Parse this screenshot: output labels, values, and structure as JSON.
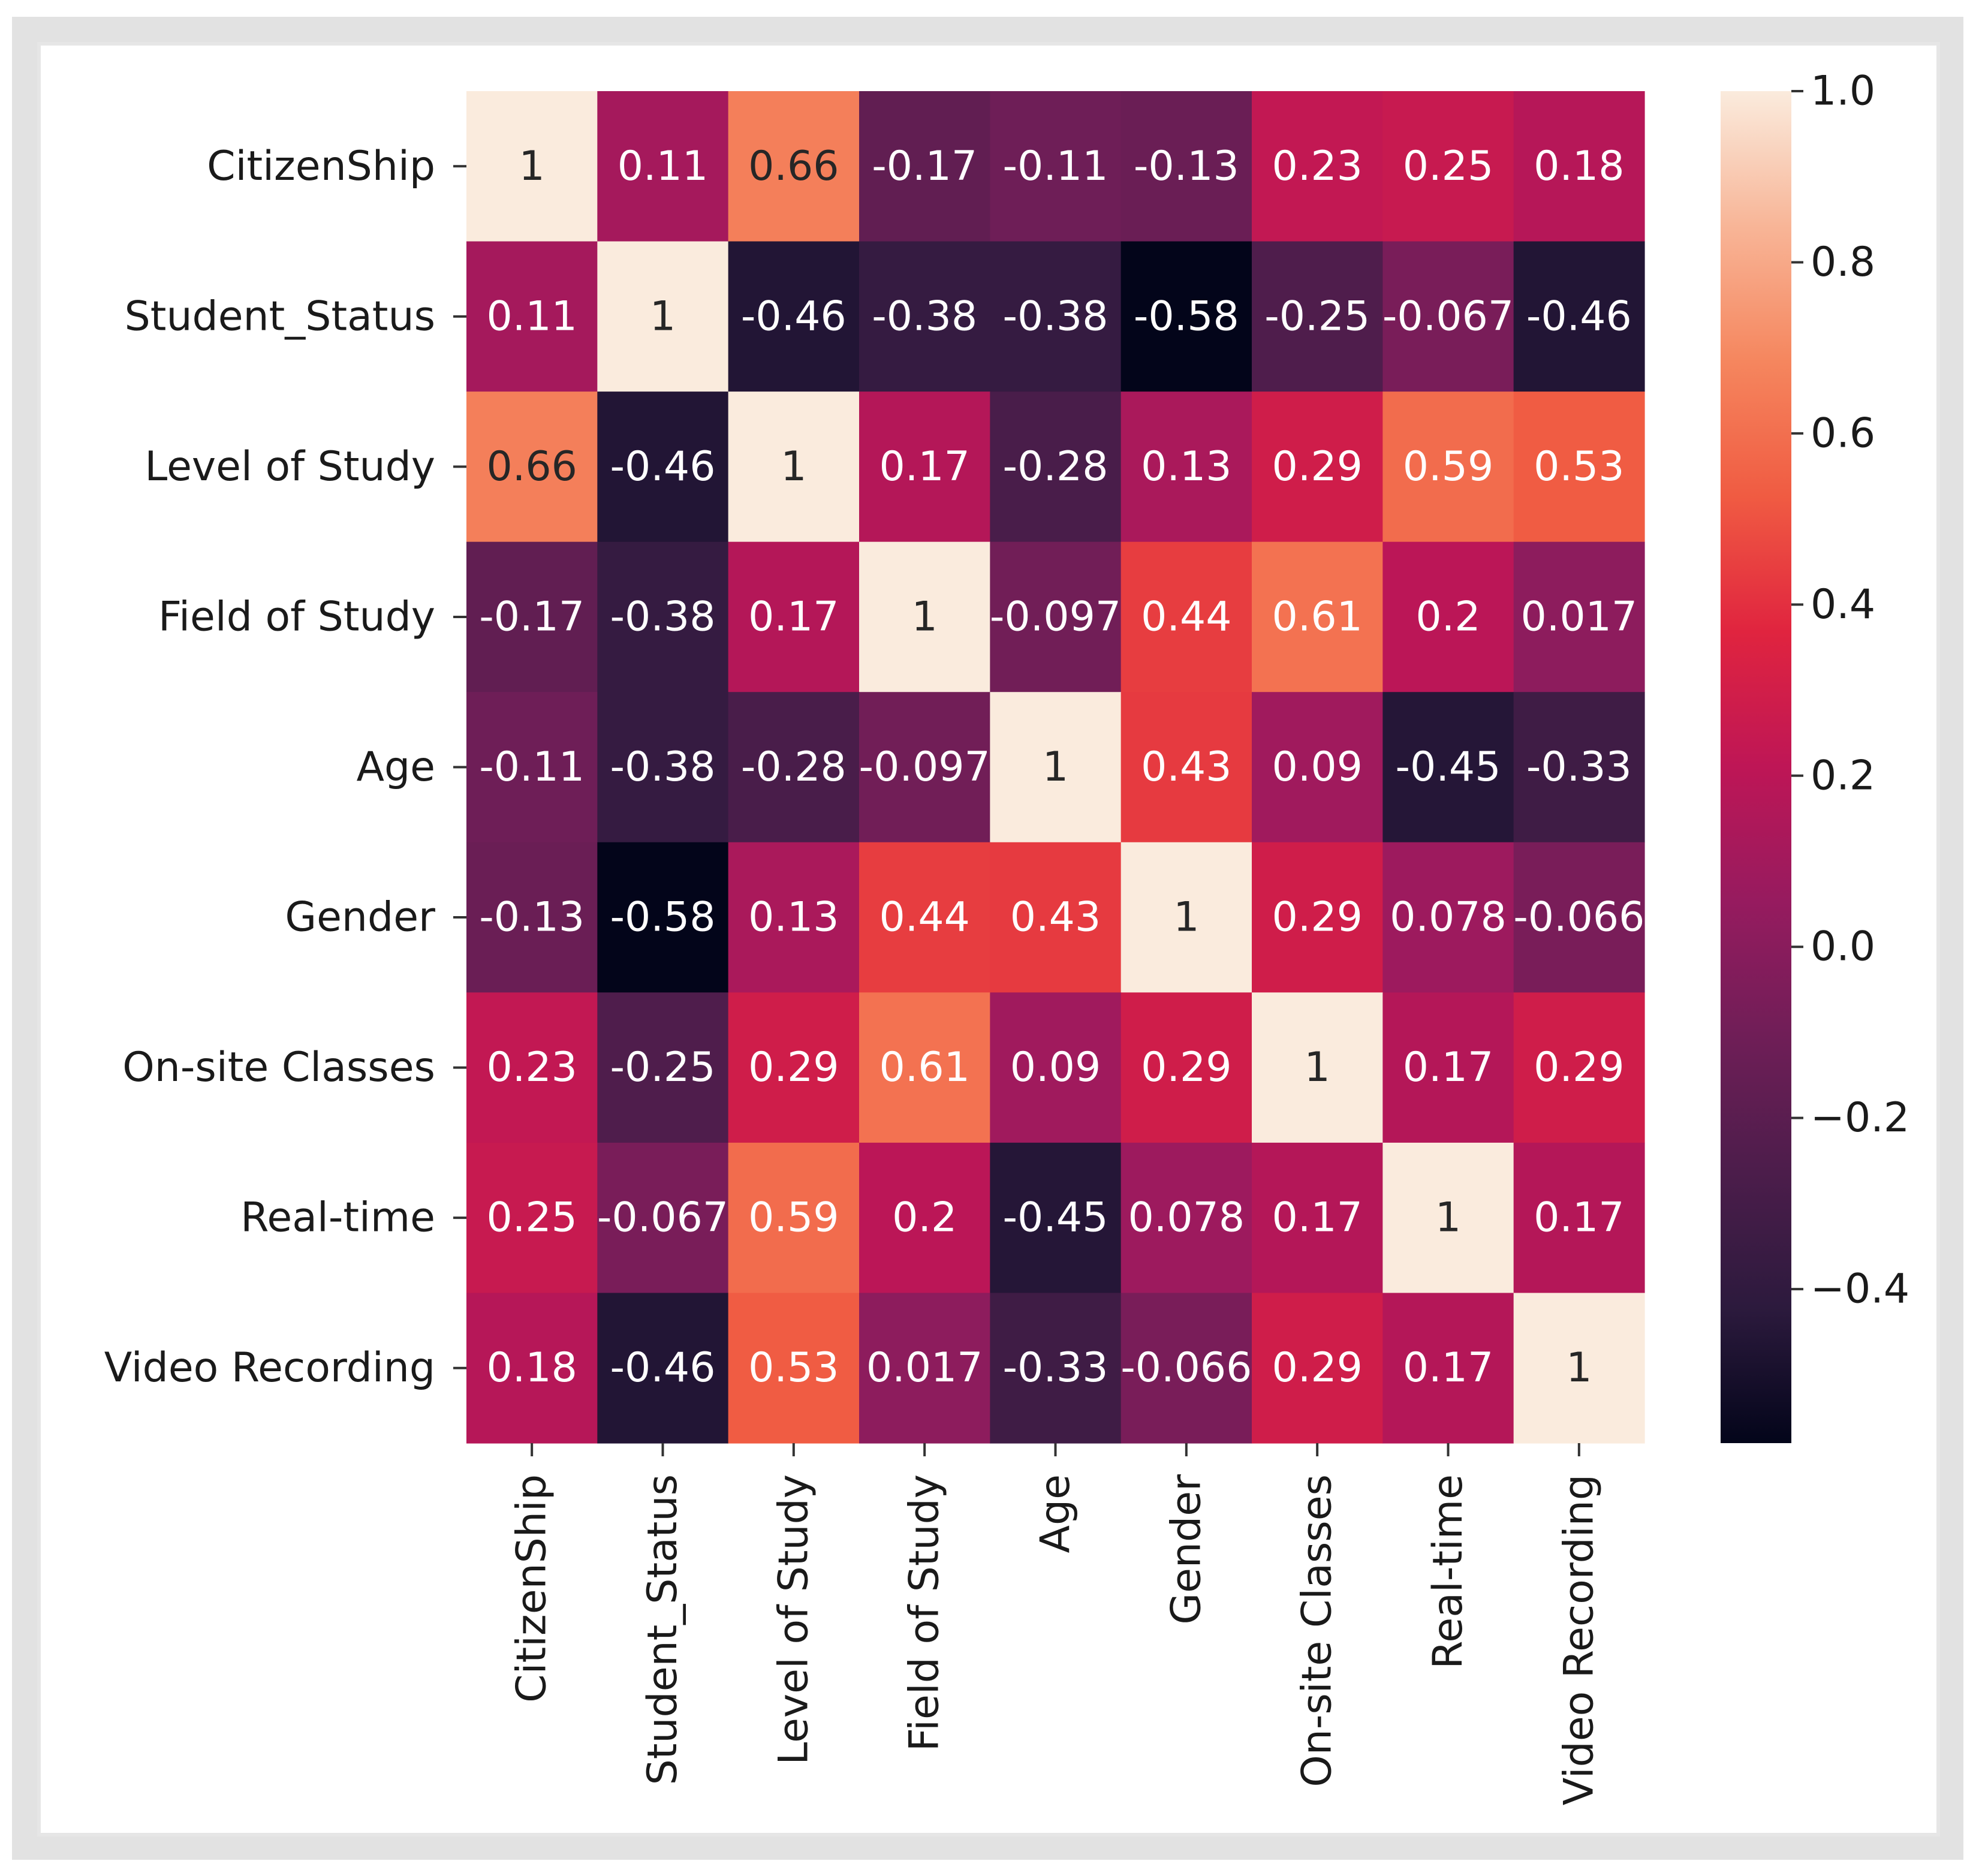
{
  "chart_data": {
    "type": "heatmap",
    "title": "",
    "xlabel": "",
    "ylabel": "",
    "row_labels": [
      "CitizenShip",
      "Student_Status",
      "Level of Study",
      "Field of Study",
      "Age",
      "Gender",
      "On-site Classes",
      "Real-time",
      "Video Recording"
    ],
    "col_labels": [
      "CitizenShip",
      "Student_Status",
      "Level of Study",
      "Field of Study",
      "Age",
      "Gender",
      "On-site Classes",
      "Real-time",
      "Video Recording"
    ],
    "values": [
      [
        1,
        0.11,
        0.66,
        -0.17,
        -0.11,
        -0.13,
        0.23,
        0.25,
        0.18
      ],
      [
        0.11,
        1,
        -0.46,
        -0.38,
        -0.38,
        -0.58,
        -0.25,
        -0.067,
        -0.46
      ],
      [
        0.66,
        -0.46,
        1,
        0.17,
        -0.28,
        0.13,
        0.29,
        0.59,
        0.53
      ],
      [
        -0.17,
        -0.38,
        0.17,
        1,
        -0.097,
        0.44,
        0.61,
        0.2,
        0.017
      ],
      [
        -0.11,
        -0.38,
        -0.28,
        -0.097,
        1,
        0.43,
        0.09,
        -0.45,
        -0.33
      ],
      [
        -0.13,
        -0.58,
        0.13,
        0.44,
        0.43,
        1,
        0.29,
        0.078,
        -0.066
      ],
      [
        0.23,
        -0.25,
        0.29,
        0.61,
        0.09,
        0.29,
        1,
        0.17,
        0.29
      ],
      [
        0.25,
        -0.067,
        0.59,
        0.2,
        -0.45,
        0.078,
        0.17,
        1,
        0.17
      ],
      [
        0.18,
        -0.46,
        0.53,
        0.017,
        -0.33,
        -0.066,
        0.29,
        0.17,
        1
      ]
    ],
    "value_labels": [
      [
        "1",
        "0.11",
        "0.66",
        "-0.17",
        "-0.11",
        "-0.13",
        "0.23",
        "0.25",
        "0.18"
      ],
      [
        "0.11",
        "1",
        "-0.46",
        "-0.38",
        "-0.38",
        "-0.58",
        "-0.25",
        "-0.067",
        "-0.46"
      ],
      [
        "0.66",
        "-0.46",
        "1",
        "0.17",
        "-0.28",
        "0.13",
        "0.29",
        "0.59",
        "0.53"
      ],
      [
        "-0.17",
        "-0.38",
        "0.17",
        "1",
        "-0.097",
        "0.44",
        "0.61",
        "0.2",
        "0.017"
      ],
      [
        "-0.11",
        "-0.38",
        "-0.28",
        "-0.097",
        "1",
        "0.43",
        "0.09",
        "-0.45",
        "-0.33"
      ],
      [
        "-0.13",
        "-0.58",
        "0.13",
        "0.44",
        "0.43",
        "1",
        "0.29",
        "0.078",
        "-0.066"
      ],
      [
        "0.23",
        "-0.25",
        "0.29",
        "0.61",
        "0.09",
        "0.29",
        "1",
        "0.17",
        "0.29"
      ],
      [
        "0.25",
        "-0.067",
        "0.59",
        "0.2",
        "-0.45",
        "0.078",
        "0.17",
        "1",
        "0.17"
      ],
      [
        "0.18",
        "-0.46",
        "0.53",
        "0.017",
        "-0.33",
        "-0.066",
        "0.29",
        "0.17",
        "1"
      ]
    ],
    "colorbar": {
      "colormap": "rocket",
      "vmin": -0.58,
      "vmax": 1.0,
      "ticks": [
        1.0,
        0.8,
        0.6,
        0.4,
        0.2,
        0.0,
        -0.2,
        -0.4
      ],
      "tick_labels": [
        "1.0",
        "0.8",
        "0.6",
        "0.4",
        "0.2",
        "0.0",
        "−0.2",
        "−0.4"
      ]
    },
    "colormap_stops": [
      {
        "v": 0.0,
        "color": "#03051a"
      },
      {
        "v": 0.1,
        "color": "#2c1a3d"
      },
      {
        "v": 0.2,
        "color": "#4c1d4b"
      },
      {
        "v": 0.3,
        "color": "#6f1e57"
      },
      {
        "v": 0.4,
        "color": "#961b5f"
      },
      {
        "v": 0.5,
        "color": "#be1656"
      },
      {
        "v": 0.6,
        "color": "#e0243f"
      },
      {
        "v": 0.7,
        "color": "#f05b42"
      },
      {
        "v": 0.8,
        "color": "#f5865e"
      },
      {
        "v": 0.9,
        "color": "#f8b597"
      },
      {
        "v": 1.0,
        "color": "#faebdd"
      }
    ]
  }
}
